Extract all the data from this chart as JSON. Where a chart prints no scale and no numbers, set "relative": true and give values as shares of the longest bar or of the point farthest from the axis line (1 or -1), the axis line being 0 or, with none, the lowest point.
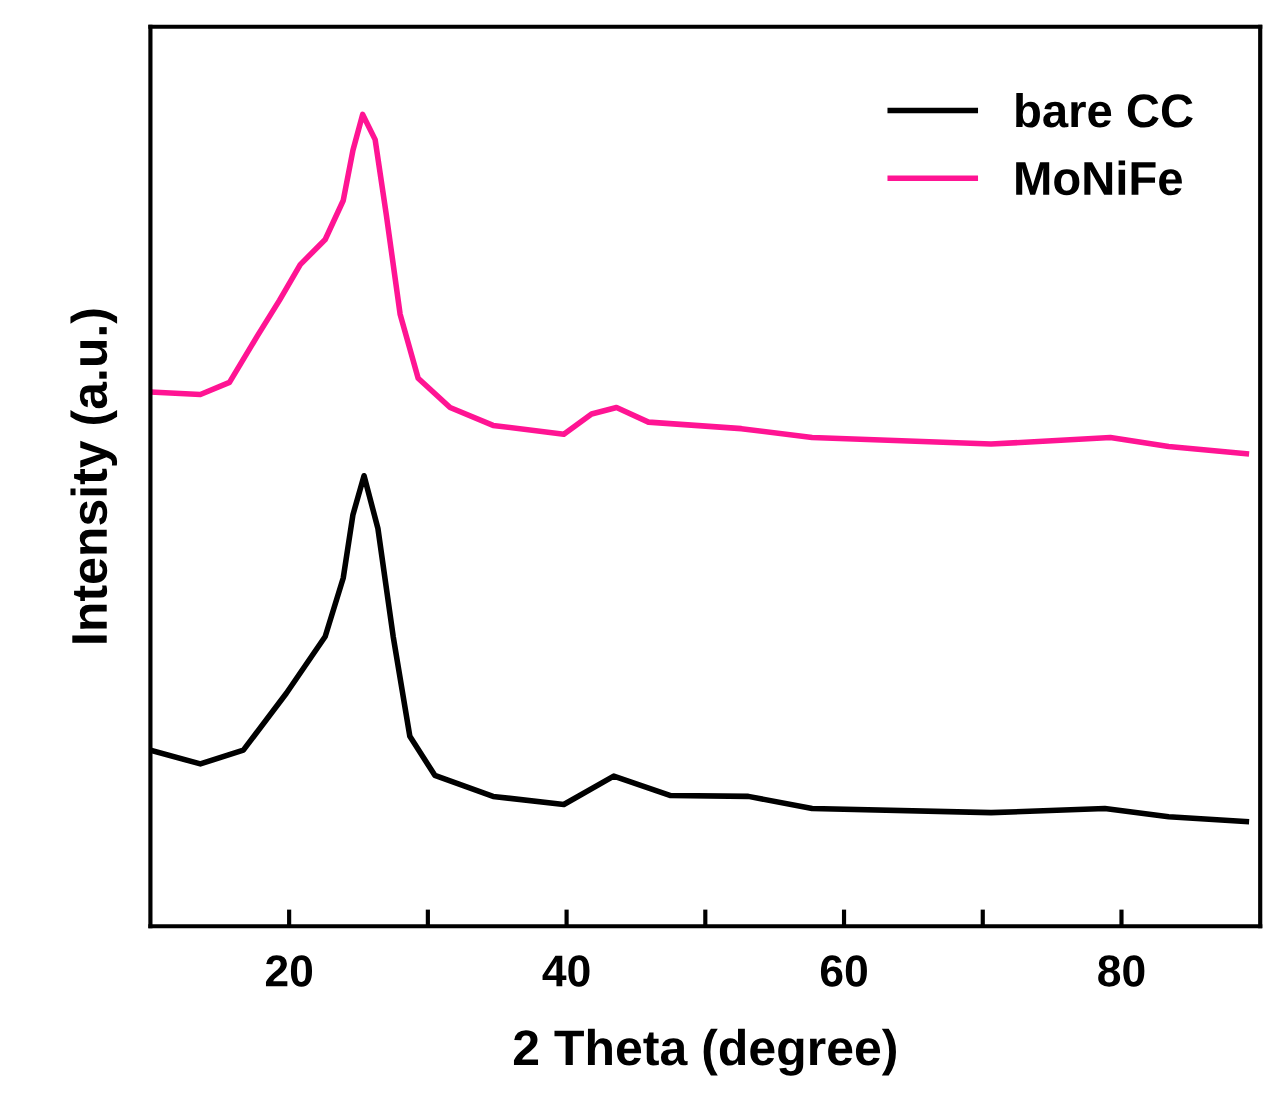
{
  "chart_data": {
    "type": "line",
    "relative": true,
    "xlabel": "2 Theta (degree)",
    "ylabel": "Intensity (a.u.)",
    "xlim": [
      10,
      90
    ],
    "xticks": [
      20,
      {
        "value": 30,
        "label": null
      },
      40,
      {
        "value": 50,
        "label": null
      },
      60,
      {
        "value": 70,
        "label": null
      },
      80
    ],
    "legend": "top right",
    "grid": false,
    "marker": "none",
    "line_style": "solid",
    "series": [
      {
        "name": "bare CC",
        "color": "#000000",
        "x": [
          10.0,
          13.6,
          16.7,
          19.8,
          22.6,
          23.9,
          24.6,
          25.4,
          26.4,
          27.5,
          28.7,
          30.5,
          34.7,
          39.8,
          43.4,
          47.5,
          53.1,
          57.7,
          70.6,
          78.8,
          83.4,
          89.0
        ],
        "values": [
          0.217,
          0.2,
          0.217,
          0.287,
          0.357,
          0.429,
          0.507,
          0.555,
          0.49,
          0.357,
          0.234,
          0.186,
          0.16,
          0.15,
          0.185,
          0.161,
          0.16,
          0.145,
          0.14,
          0.145,
          0.135,
          0.129
        ]
      },
      {
        "name": "MoNiFe",
        "color": "#ff1493",
        "x": [
          10.0,
          13.6,
          15.7,
          17.7,
          19.3,
          20.8,
          22.6,
          23.9,
          24.6,
          25.3,
          26.2,
          27.0,
          28.0,
          29.3,
          31.6,
          34.7,
          39.8,
          41.8,
          43.6,
          45.9,
          52.6,
          57.7,
          70.6,
          79.2,
          83.4,
          89.0
        ],
        "values": [
          0.658,
          0.655,
          0.67,
          0.727,
          0.771,
          0.815,
          0.846,
          0.894,
          0.956,
          1,
          0.969,
          0.877,
          0.754,
          0.675,
          0.639,
          0.617,
          0.606,
          0.631,
          0.639,
          0.621,
          0.613,
          0.602,
          0.594,
          0.602,
          0.591,
          0.582
        ]
      }
    ]
  }
}
